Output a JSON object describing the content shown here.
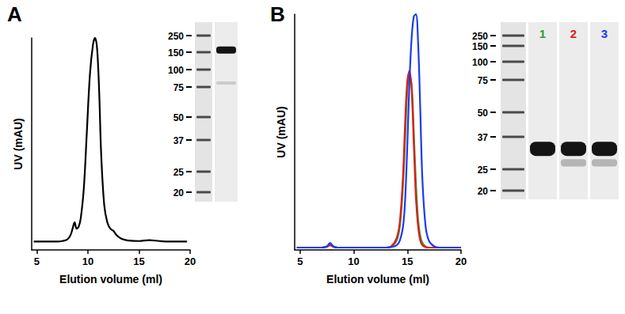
{
  "chart_data": [
    {
      "type": "line",
      "title": "A",
      "x_label": "Elution volume (ml)",
      "y_label": "UV (mAU)",
      "xlim": [
        4.5,
        20
      ],
      "xticks": [
        5,
        10,
        15,
        20
      ],
      "ylim": [
        0,
        100
      ],
      "yticks": [],
      "tick_labels": "x",
      "grid": false,
      "color": "#000000",
      "x": [
        4.7,
        5,
        6,
        7,
        7.5,
        8,
        8.3,
        8.5,
        8.7,
        8.9,
        9.1,
        9.3,
        9.6,
        9.9,
        10.2,
        10.5,
        10.7,
        10.9,
        11.1,
        11.3,
        11.6,
        11.9,
        12.2,
        12.5,
        12.8,
        13.2,
        13.6,
        14,
        15,
        16,
        17,
        18,
        19,
        19.7
      ],
      "values": [
        4,
        4,
        4,
        4,
        4.2,
        5,
        7,
        10,
        13,
        10,
        11,
        15,
        29,
        56,
        83,
        97,
        100,
        95,
        75,
        45,
        21,
        13,
        10,
        9,
        7,
        5.5,
        4.8,
        4.4,
        4.2,
        4.6,
        4.2,
        4,
        4,
        4
      ]
    },
    {
      "type": "line",
      "title": "B",
      "x_label": "Elution volume (ml)",
      "y_label": "UV (mAU)",
      "xlim": [
        4.5,
        20
      ],
      "xticks": [
        5,
        10,
        15,
        20
      ],
      "ylim": [
        0,
        100
      ],
      "yticks": [],
      "tick_labels": "x",
      "grid": false,
      "x": [
        4.7,
        5,
        6,
        7,
        7.5,
        7.8,
        8.1,
        8.5,
        9,
        10,
        11,
        12,
        13,
        13.5,
        14,
        14.3,
        14.6,
        14.8,
        15,
        15.2,
        15.4,
        15.6,
        15.8,
        16,
        16.2,
        16.4,
        16.7,
        17,
        17.5,
        18,
        19,
        20
      ],
      "series": [
        {
          "name": "1",
          "color": "#2ca02c",
          "values": [
            1,
            1,
            1,
            1,
            1.5,
            2.5,
            1.5,
            1,
            1,
            1,
            1,
            1,
            1,
            1.5,
            4,
            10,
            28,
            48,
            68,
            74,
            70,
            50,
            28,
            13,
            6,
            3,
            1.5,
            1,
            1,
            1,
            1,
            1
          ]
        },
        {
          "name": "2",
          "color": "#e31a1c",
          "values": [
            1,
            1,
            1,
            1,
            1.3,
            2,
            1.3,
            1,
            1,
            1,
            1,
            1,
            1,
            1.5,
            5,
            12,
            32,
            55,
            72,
            76,
            68,
            45,
            22,
            10,
            4,
            2,
            1.2,
            1,
            1,
            1,
            1,
            1
          ]
        },
        {
          "name": "3",
          "color": "#1a3cf0",
          "values": [
            1,
            1,
            1,
            1,
            1.5,
            3,
            1.5,
            1,
            1,
            1,
            1,
            1,
            1,
            1.2,
            2,
            4,
            10,
            22,
            45,
            72,
            90,
            99,
            100,
            88,
            60,
            30,
            10,
            4,
            1.5,
            1,
            1,
            1
          ]
        }
      ]
    }
  ],
  "gels": [
    {
      "markers": [
        250,
        150,
        100,
        75,
        50,
        37,
        25,
        20
      ],
      "lanes": [
        {
          "bands": [
            {
              "kDa": 160,
              "strength": 1
            },
            {
              "kDa": 80,
              "strength": 0.15
            }
          ]
        }
      ]
    },
    {
      "markers": [
        250,
        150,
        100,
        75,
        50,
        37,
        25,
        20
      ],
      "lanes": [
        {
          "bands": [
            {
              "kDa": 32,
              "strength": 1
            }
          ]
        },
        {
          "bands": [
            {
              "kDa": 32,
              "strength": 1
            },
            {
              "kDa": 27,
              "strength": 0.25
            }
          ]
        },
        {
          "bands": [
            {
              "kDa": 32,
              "strength": 1
            },
            {
              "kDa": 27,
              "strength": 0.25
            }
          ]
        }
      ]
    }
  ]
}
